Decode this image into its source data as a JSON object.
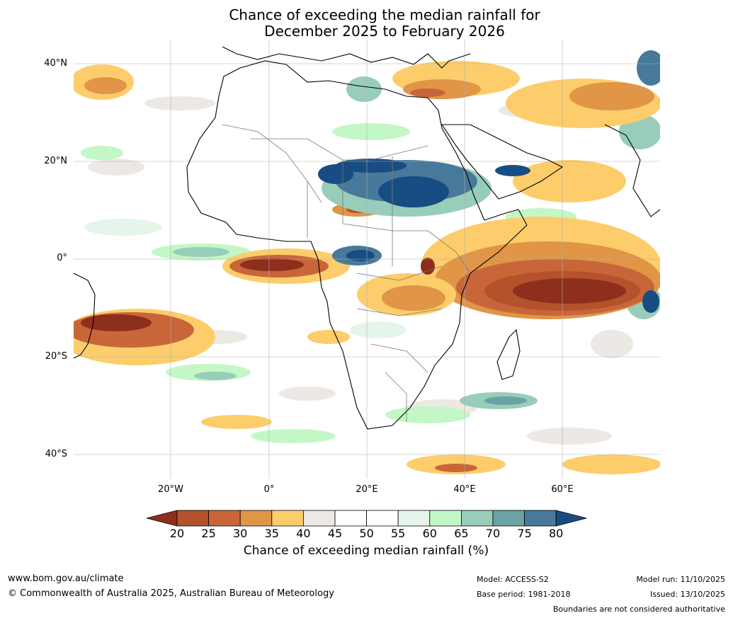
{
  "title": {
    "line1": "Chance of exceeding the median rainfall for",
    "line2": "December 2025 to February 2026"
  },
  "map": {
    "lat_labels": [
      "40°N",
      "20°N",
      "0°",
      "20°S",
      "40°S"
    ],
    "lon_labels": [
      "20°W",
      "0°",
      "20°E",
      "40°E",
      "60°E"
    ]
  },
  "colorbar": {
    "label": "Chance of exceeding median rainfall (%)",
    "ticks": [
      "20",
      "25",
      "30",
      "35",
      "40",
      "45",
      "50",
      "55",
      "60",
      "65",
      "70",
      "75",
      "80"
    ],
    "colors": [
      "#8e2e1c",
      "#b3522b",
      "#c8663a",
      "#e09547",
      "#fccd6a",
      "#ece9e4",
      "#ffffff",
      "#ffffff",
      "#e6f5e9",
      "#c4f7c6",
      "#98cdb9",
      "#6aa3a4",
      "#48799a",
      "#174d82"
    ]
  },
  "footer": {
    "website": "www.bom.gov.au/climate",
    "copyright": "© Commonwealth of Australia 2025, Australian Bureau of Meteorology",
    "model": "Model: ACCESS-S2",
    "base_period": "Base period: 1981-2018",
    "model_run": "Model run: 11/10/2025",
    "issued": "Issued: 13/10/2025",
    "disclaimer": "Boundaries are not considered authoritative"
  }
}
